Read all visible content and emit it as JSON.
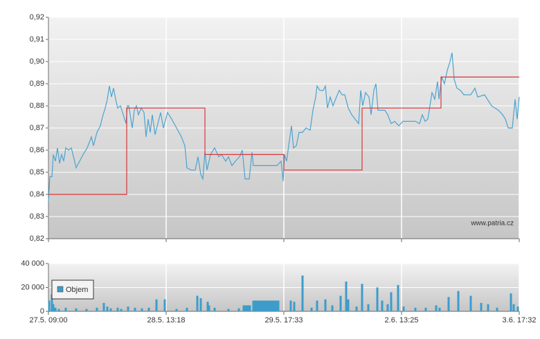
{
  "chart_data": [
    {
      "type": "line",
      "annotation": "www.patria.cz",
      "grid": true,
      "xlim": [
        0,
        680
      ],
      "xticks": [
        0,
        170,
        340,
        510,
        680
      ],
      "ylim": [
        0.82,
        0.92
      ],
      "yticks": [
        {
          "value": 0.82,
          "label": "0,82"
        },
        {
          "value": 0.83,
          "label": "0,83"
        },
        {
          "value": 0.84,
          "label": "0,84"
        },
        {
          "value": 0.85,
          "label": "0,85"
        },
        {
          "value": 0.86,
          "label": "0,86"
        },
        {
          "value": 0.87,
          "label": "0,87"
        },
        {
          "value": 0.88,
          "label": "0,88"
        },
        {
          "value": 0.89,
          "label": "0,89"
        },
        {
          "value": 0.9,
          "label": "0,90"
        },
        {
          "value": 0.91,
          "label": "0,91"
        },
        {
          "value": 0.92,
          "label": "0,92"
        }
      ],
      "series": [
        {
          "color": "#4aa3d0",
          "drawstyle": "default",
          "x": [
            0,
            2,
            5,
            7,
            10,
            13,
            16,
            19,
            22,
            25,
            29,
            33,
            37,
            40,
            45,
            50,
            56,
            62,
            65,
            70,
            75,
            78,
            82,
            85,
            88,
            91,
            94,
            97,
            100,
            104,
            108,
            112,
            114,
            116,
            118,
            121,
            124,
            127,
            130,
            134,
            138,
            141,
            144,
            147,
            150,
            154,
            158,
            162,
            166,
            172,
            178,
            185,
            192,
            197,
            200,
            206,
            212,
            216,
            220,
            223,
            226,
            229,
            234,
            240,
            246,
            250,
            256,
            260,
            265,
            270,
            276,
            280,
            284,
            290,
            294,
            296,
            305,
            320,
            330,
            336,
            339,
            341,
            344,
            347,
            351,
            354,
            358,
            362,
            367,
            372,
            378,
            382,
            386,
            388,
            392,
            397,
            400,
            403,
            407,
            411,
            416,
            420,
            424,
            428,
            433,
            438,
            443,
            448,
            451,
            454,
            458,
            463,
            466,
            470,
            473,
            476,
            480,
            486,
            490,
            495,
            500,
            506,
            512,
            520,
            530,
            536,
            540,
            544,
            548,
            554,
            558,
            562,
            564,
            568,
            572,
            576,
            580,
            583,
            586,
            590,
            595,
            600,
            610,
            616,
            620,
            630,
            640,
            650,
            656,
            660,
            664,
            670,
            674,
            677,
            680
          ],
          "values": [
            0.837,
            0.848,
            0.848,
            0.858,
            0.855,
            0.861,
            0.854,
            0.858,
            0.855,
            0.861,
            0.86,
            0.861,
            0.856,
            0.852,
            0.855,
            0.858,
            0.861,
            0.866,
            0.862,
            0.868,
            0.871,
            0.875,
            0.879,
            0.883,
            0.889,
            0.884,
            0.888,
            0.883,
            0.879,
            0.88,
            0.876,
            0.872,
            0.88,
            0.88,
            0.876,
            0.87,
            0.878,
            0.88,
            0.876,
            0.879,
            0.877,
            0.866,
            0.874,
            0.868,
            0.876,
            0.867,
            0.872,
            0.877,
            0.87,
            0.877,
            0.874,
            0.87,
            0.866,
            0.862,
            0.852,
            0.851,
            0.851,
            0.857,
            0.849,
            0.847,
            0.859,
            0.851,
            0.858,
            0.861,
            0.857,
            0.858,
            0.855,
            0.857,
            0.853,
            0.855,
            0.857,
            0.86,
            0.847,
            0.847,
            0.859,
            0.853,
            0.853,
            0.853,
            0.853,
            0.855,
            0.846,
            0.858,
            0.855,
            0.862,
            0.871,
            0.861,
            0.862,
            0.868,
            0.868,
            0.87,
            0.869,
            0.878,
            0.884,
            0.889,
            0.887,
            0.887,
            0.889,
            0.879,
            0.884,
            0.88,
            0.884,
            0.887,
            0.885,
            0.885,
            0.879,
            0.876,
            0.874,
            0.872,
            0.887,
            0.88,
            0.886,
            0.884,
            0.876,
            0.887,
            0.89,
            0.878,
            0.878,
            0.878,
            0.876,
            0.872,
            0.873,
            0.871,
            0.873,
            0.873,
            0.873,
            0.872,
            0.876,
            0.873,
            0.874,
            0.886,
            0.883,
            0.891,
            0.883,
            0.893,
            0.89,
            0.896,
            0.9,
            0.904,
            0.892,
            0.888,
            0.887,
            0.885,
            0.885,
            0.888,
            0.884,
            0.885,
            0.88,
            0.878,
            0.876,
            0.874,
            0.87,
            0.87,
            0.883,
            0.874,
            0.884
          ]
        },
        {
          "color": "#d9363a",
          "drawstyle": "steps-post",
          "x": [
            0,
            113,
            226,
            340,
            453,
            567
          ],
          "values": [
            0.84,
            0.879,
            0.858,
            0.851,
            0.879,
            0.893
          ]
        }
      ]
    },
    {
      "type": "bar",
      "grid": true,
      "legend": "left",
      "xlim": [
        0,
        680
      ],
      "xticks": [
        {
          "value": 0,
          "label": "27.5. 09:00"
        },
        {
          "value": 170,
          "label": "28.5. 13:18"
        },
        {
          "value": 340,
          "label": "29.5. 17:33"
        },
        {
          "value": 510,
          "label": "2.6. 13:25"
        },
        {
          "value": 680,
          "label": "3.6. 17:32"
        }
      ],
      "ylim": [
        0,
        40000
      ],
      "yticks": [
        0,
        {
          "value": 20000,
          "label": "20 000"
        },
        {
          "value": 40000,
          "label": "40 000"
        }
      ],
      "series": [
        {
          "name": "Objem",
          "color": "#3d9cc9",
          "x": [
            1,
            5,
            7,
            10,
            15,
            25,
            40,
            55,
            70,
            80,
            85,
            90,
            100,
            105,
            115,
            125,
            135,
            145,
            156,
            168,
            185,
            200,
            215,
            220,
            230,
            232,
            240,
            260,
            275,
            282,
            285,
            288,
            291,
            296,
            299,
            302,
            305,
            308,
            311,
            314,
            317,
            320,
            323,
            326,
            329,
            332,
            350,
            355,
            367,
            380,
            388,
            400,
            410,
            422,
            430,
            433,
            445,
            453,
            462,
            475,
            482,
            490,
            495,
            505,
            513,
            530,
            545,
            560,
            565,
            578,
            592,
            610,
            625,
            635,
            648,
            668,
            672,
            678
          ],
          "values": [
            9000,
            14000,
            6000,
            3000,
            2000,
            3000,
            2500,
            2000,
            3000,
            7000,
            4000,
            2500,
            3000,
            2000,
            4000,
            3000,
            2500,
            3000,
            10000,
            10000,
            2000,
            3000,
            13000,
            11000,
            8000,
            5000,
            3000,
            2000,
            2500,
            5000,
            5000,
            5000,
            5000,
            9000,
            9000,
            9000,
            9000,
            9000,
            9000,
            9000,
            9000,
            9000,
            9000,
            9000,
            9000,
            9000,
            9000,
            8000,
            30000,
            3000,
            9000,
            10000,
            5000,
            13000,
            25000,
            10000,
            4000,
            23000,
            6000,
            20000,
            9000,
            6000,
            16000,
            22000,
            4000,
            3000,
            3000,
            5000,
            3000,
            12000,
            17000,
            13000,
            7000,
            6000,
            3000,
            15000,
            6000,
            4000
          ]
        }
      ]
    }
  ]
}
